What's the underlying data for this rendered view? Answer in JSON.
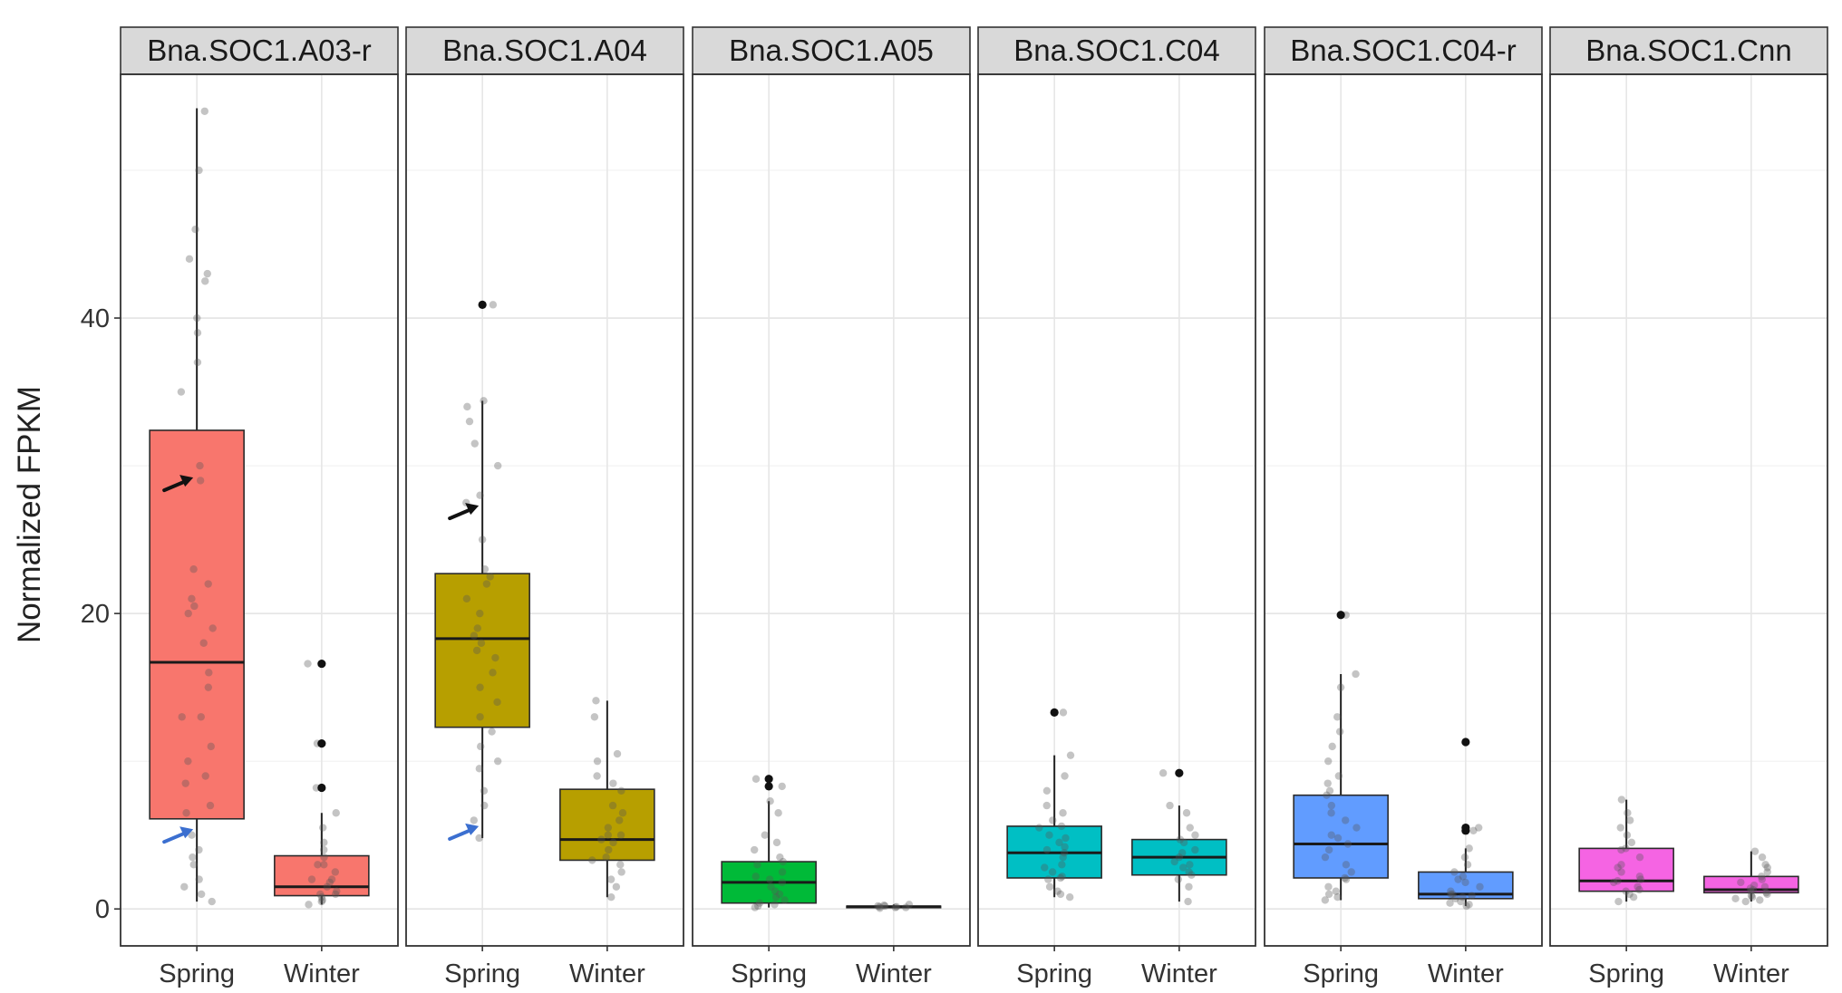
{
  "chart_data": {
    "type": "boxplot",
    "ylabel": "Normalized FPKM",
    "xlabel": "",
    "ylim": [
      -2.5,
      56.5
    ],
    "yticks": [
      0,
      20,
      40
    ],
    "grid": true,
    "groups": [
      "Spring",
      "Winter"
    ],
    "panels": [
      {
        "title": "Bna.SOC1.A03-r",
        "color": "#F8766D",
        "boxes": {
          "Spring": {
            "min": 0.5,
            "q1": 6.1,
            "median": 16.7,
            "q3": 32.4,
            "max": 54.2,
            "outliers": []
          },
          "Winter": {
            "min": 0.3,
            "q1": 0.9,
            "median": 1.5,
            "q3": 3.6,
            "max": 6.5,
            "outliers": [
              8.2,
              11.2,
              16.6
            ]
          }
        },
        "points": {
          "Spring": [
            54,
            50,
            46,
            44,
            43,
            42.5,
            40,
            39,
            37,
            35,
            30,
            29,
            23,
            22,
            21,
            20.5,
            20,
            19,
            18,
            16,
            15,
            13,
            13,
            11,
            10,
            9,
            8.5,
            7,
            6.5,
            5,
            4,
            3.5,
            3,
            2,
            1.5,
            1,
            0.5
          ],
          "Winter": [
            16.6,
            11.2,
            8.2,
            6.5,
            5.5,
            4.5,
            4,
            3.5,
            3,
            3,
            2.5,
            2,
            2,
            1.8,
            1.5,
            1.2,
            1,
            1,
            0.8,
            0.6,
            0.5,
            0.3
          ]
        },
        "arrows": [
          {
            "color": "#111111",
            "group": "Spring",
            "value": 29.2
          },
          {
            "color": "#3b6fd0",
            "group": "Spring",
            "value": 5.4
          }
        ]
      },
      {
        "title": "Bna.SOC1.A04",
        "color": "#B79F00",
        "boxes": {
          "Spring": {
            "min": 4.8,
            "q1": 12.3,
            "median": 18.3,
            "q3": 22.7,
            "max": 34.4,
            "outliers": [
              40.9
            ]
          },
          "Winter": {
            "min": 0.8,
            "q1": 3.3,
            "median": 4.7,
            "q3": 8.1,
            "max": 14.1,
            "outliers": []
          }
        },
        "points": {
          "Spring": [
            40.9,
            34.4,
            34,
            33,
            31.5,
            30,
            28,
            27.5,
            25,
            23,
            22.5,
            22,
            21,
            20,
            19,
            18.5,
            18,
            17.5,
            17,
            16,
            15,
            14,
            13,
            12,
            11,
            10,
            9.5,
            8,
            7,
            6,
            4.8
          ],
          "Winter": [
            14.1,
            13,
            10.5,
            10,
            9,
            8.5,
            8,
            7,
            6.5,
            6,
            5.5,
            5,
            5,
            4.7,
            4.5,
            4,
            3.5,
            3.3,
            3,
            2.5,
            2,
            1.5,
            0.8
          ]
        },
        "arrows": [
          {
            "color": "#111111",
            "group": "Spring",
            "value": 27.3
          },
          {
            "color": "#3b6fd0",
            "group": "Spring",
            "value": 5.6
          }
        ]
      },
      {
        "title": "Bna.SOC1.A05",
        "color": "#00BA38",
        "boxes": {
          "Spring": {
            "min": 0.1,
            "q1": 0.4,
            "median": 1.8,
            "q3": 3.2,
            "max": 7.3,
            "outliers": [
              8.3,
              8.8
            ]
          },
          "Winter": {
            "min": 0.05,
            "q1": 0.1,
            "median": 0.15,
            "q3": 0.2,
            "max": 0.3,
            "outliers": []
          }
        },
        "points": {
          "Spring": [
            8.8,
            8.3,
            7.3,
            6.5,
            5,
            4.5,
            4,
            3.5,
            3.2,
            3,
            2.5,
            2.2,
            2,
            1.8,
            1.5,
            1.2,
            1,
            0.8,
            0.6,
            0.4,
            0.3,
            0.2,
            0.1
          ],
          "Winter": [
            0.3,
            0.25,
            0.2,
            0.2,
            0.15,
            0.15,
            0.1,
            0.1,
            0.05
          ]
        },
        "arrows": []
      },
      {
        "title": "Bna.SOC1.C04",
        "color": "#00BFC4",
        "boxes": {
          "Spring": {
            "min": 0.8,
            "q1": 2.1,
            "median": 3.8,
            "q3": 5.6,
            "max": 10.4,
            "outliers": [
              13.3
            ]
          },
          "Winter": {
            "min": 0.5,
            "q1": 2.3,
            "median": 3.5,
            "q3": 4.7,
            "max": 7.0,
            "outliers": [
              9.2
            ]
          }
        },
        "points": {
          "Spring": [
            13.3,
            10.4,
            9,
            8,
            7,
            6.5,
            6,
            5.6,
            5.5,
            5,
            4.8,
            4.5,
            4.2,
            4,
            3.8,
            3.5,
            3,
            2.8,
            2.5,
            2.2,
            2.1,
            2,
            1.5,
            1.2,
            1,
            0.8
          ],
          "Winter": [
            9.2,
            7,
            6.5,
            5.5,
            5,
            4.7,
            4.5,
            4,
            3.8,
            3.5,
            3.2,
            3,
            2.8,
            2.5,
            2.3,
            2,
            1.5,
            0.5
          ]
        },
        "arrows": []
      },
      {
        "title": "Bna.SOC1.C04-r",
        "color": "#619CFF",
        "boxes": {
          "Spring": {
            "min": 0.6,
            "q1": 2.1,
            "median": 4.4,
            "q3": 7.7,
            "max": 15.9,
            "outliers": [
              19.9
            ]
          },
          "Winter": {
            "min": 0.2,
            "q1": 0.7,
            "median": 1.0,
            "q3": 2.5,
            "max": 4.1,
            "outliers": [
              5.3,
              5.5,
              11.3
            ]
          }
        },
        "points": {
          "Spring": [
            19.9,
            15.9,
            15,
            13,
            12,
            11,
            10,
            9,
            8.5,
            8,
            7.7,
            7,
            6.5,
            6,
            5.5,
            5,
            4.8,
            4.4,
            4,
            3.5,
            3,
            2.5,
            2.1,
            2,
            1.5,
            1.2,
            1,
            0.8,
            0.6
          ],
          "Winter": [
            11.3,
            5.5,
            5.3,
            4.1,
            3.5,
            3,
            2.5,
            2.2,
            2,
            1.8,
            1.5,
            1.2,
            1,
            1,
            0.9,
            0.8,
            0.7,
            0.5,
            0.4,
            0.3,
            0.2
          ]
        },
        "arrows": []
      },
      {
        "title": "Bna.SOC1.Cnn",
        "color": "#F564E3",
        "boxes": {
          "Spring": {
            "min": 0.5,
            "q1": 1.2,
            "median": 1.9,
            "q3": 4.1,
            "max": 7.4,
            "outliers": []
          },
          "Winter": {
            "min": 0.5,
            "q1": 1.1,
            "median": 1.3,
            "q3": 2.2,
            "max": 3.9,
            "outliers": []
          }
        },
        "points": {
          "Spring": [
            7.4,
            6.5,
            6,
            5.5,
            5,
            4.5,
            4.1,
            4,
            3.5,
            3,
            2.8,
            2.5,
            2.2,
            2,
            1.9,
            1.8,
            1.5,
            1.3,
            1.2,
            1,
            0.8,
            0.5
          ],
          "Winter": [
            3.9,
            3.5,
            3,
            2.8,
            2.5,
            2.2,
            2,
            1.8,
            1.6,
            1.5,
            1.4,
            1.3,
            1.2,
            1.1,
            1,
            0.9,
            0.8,
            0.7,
            0.6,
            0.5
          ]
        },
        "arrows": []
      }
    ]
  }
}
